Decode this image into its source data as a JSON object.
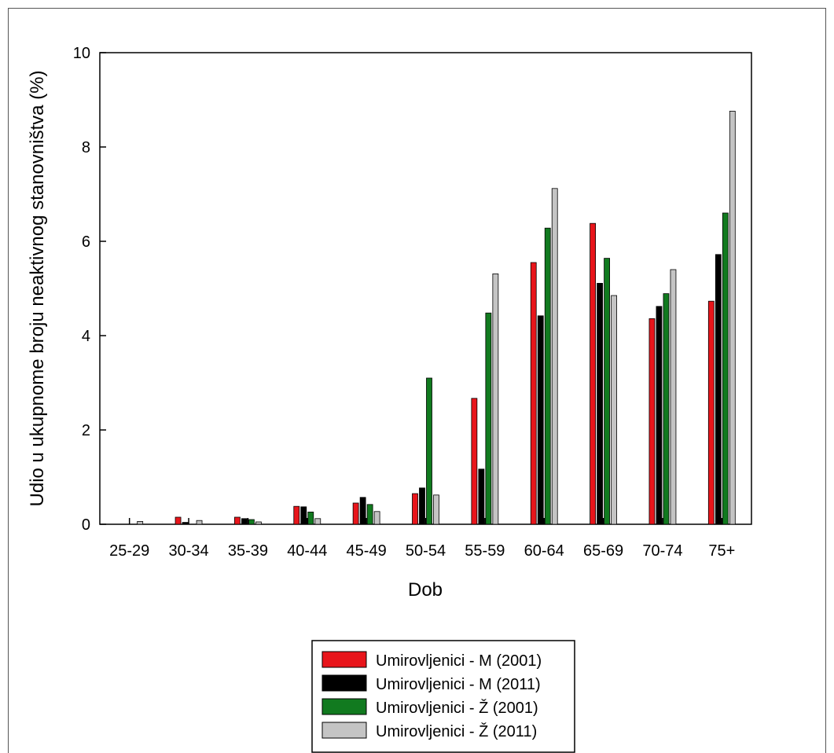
{
  "chart_data": {
    "type": "bar",
    "xlabel": "Dob",
    "ylabel": "Udio u ukupnome broju neaktivnog stanovništva (%)",
    "ylim": [
      0,
      10
    ],
    "yticks": [
      0,
      2,
      4,
      6,
      8,
      10
    ],
    "grid": false,
    "legend_position": "bottom-center",
    "categories": [
      "25-29",
      "30-34",
      "35-39",
      "40-44",
      "45-49",
      "50-54",
      "55-59",
      "60-64",
      "65-69",
      "70-74",
      "75+"
    ],
    "series": [
      {
        "name": "Umirovljenici - M (2001)",
        "color": "#e8151b",
        "values": [
          0.0,
          0.15,
          0.15,
          0.38,
          0.45,
          0.65,
          2.67,
          5.55,
          6.38,
          4.36,
          4.73
        ]
      },
      {
        "name": "Umirovljenici - M (2011)",
        "color": "#000000",
        "values": [
          0.0,
          0.04,
          0.12,
          0.37,
          0.57,
          0.77,
          1.17,
          4.42,
          5.11,
          4.62,
          5.72
        ]
      },
      {
        "name": "Umirovljenici - Ž (2001)",
        "color": "#117a1f",
        "values": [
          0.0,
          0.0,
          0.1,
          0.26,
          0.42,
          3.1,
          4.48,
          6.28,
          5.64,
          4.89,
          6.6
        ]
      },
      {
        "name": "Umirovljenici - Ž (2011)",
        "color": "#c4c4c4",
        "values": [
          0.06,
          0.08,
          0.05,
          0.12,
          0.27,
          0.62,
          5.31,
          7.12,
          4.85,
          5.4,
          8.76
        ]
      }
    ]
  }
}
